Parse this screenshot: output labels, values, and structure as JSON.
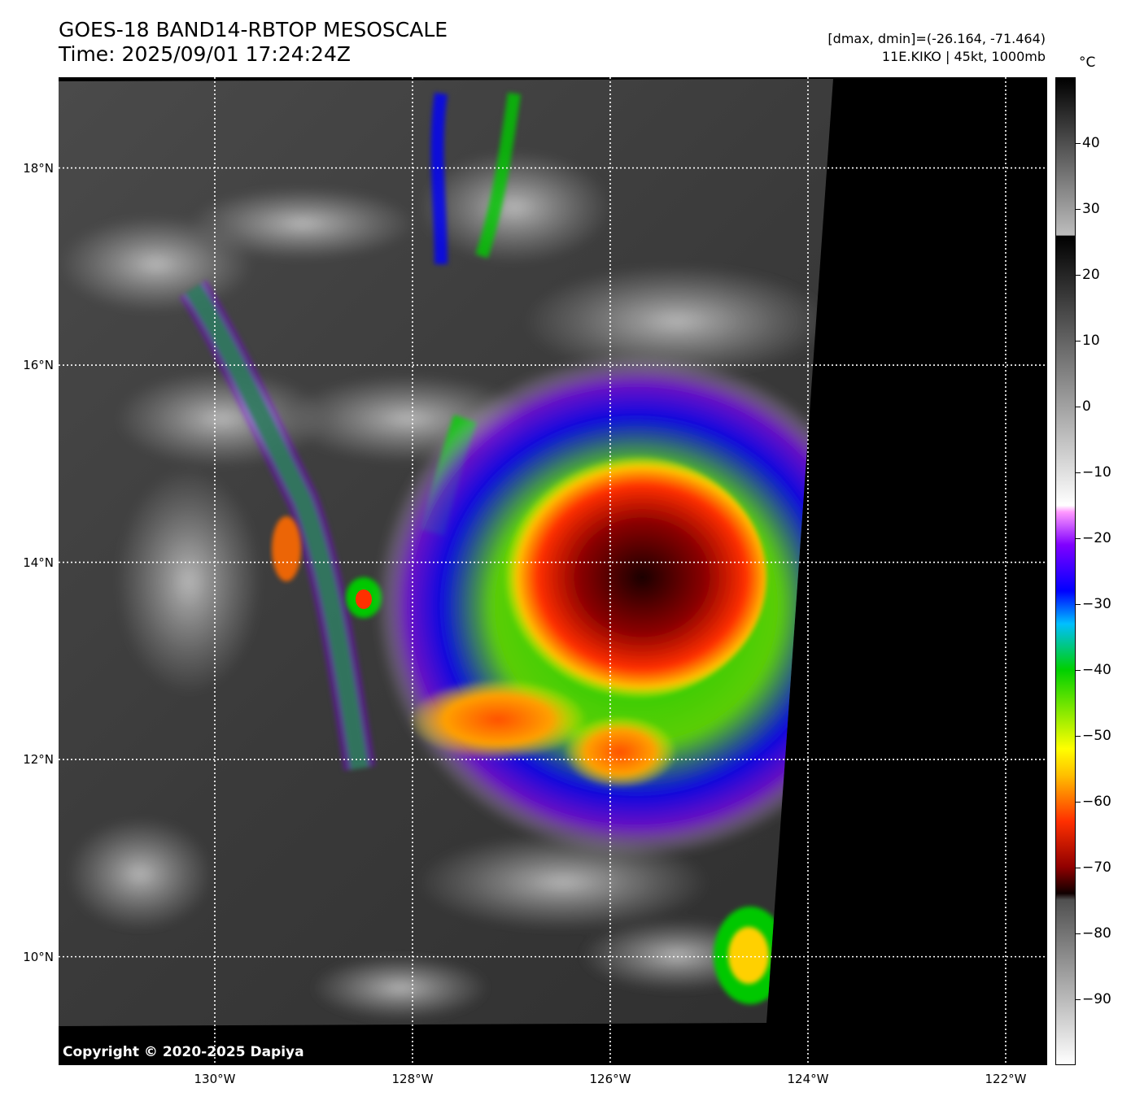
{
  "header": {
    "title_line1": "GOES-18 BAND14-RBTOP MESOSCALE",
    "title_line2": "Time: 2025/09/01 17:24:24Z",
    "stats_line": "[dmax, dmin]=(-26.164, -71.464)",
    "storm_line": "11E.KIKO | 45kt, 1000mb"
  },
  "map": {
    "copyright": "Copyright © 2020-2025 Dapiya",
    "lat_labels": [
      "18°N",
      "16°N",
      "14°N",
      "12°N",
      "10°N"
    ],
    "lon_labels": [
      "130°W",
      "128°W",
      "126°W",
      "124°W",
      "122°W"
    ],
    "lat_values": [
      18,
      16,
      14,
      12,
      10
    ],
    "lon_values": [
      -130,
      -128,
      -126,
      -124,
      -122
    ],
    "lat_range": [
      8.9,
      18.92
    ],
    "lon_range": [
      -131.58,
      -121.58
    ],
    "gridline_style": "white dotted",
    "storm_center": {
      "lat": 13.9,
      "lon": -125.6
    }
  },
  "colorbar": {
    "unit": "°C",
    "labels": [
      "40",
      "30",
      "20",
      "10",
      "0",
      "−10",
      "−20",
      "−30",
      "−40",
      "−50",
      "−60",
      "−70",
      "−80",
      "−90"
    ],
    "values": [
      40,
      30,
      20,
      10,
      0,
      -10,
      -20,
      -30,
      -40,
      -50,
      -60,
      -70,
      -80,
      -90
    ],
    "range": [
      -100,
      50
    ],
    "stops": [
      {
        "t": 50,
        "color": "#000000"
      },
      {
        "t": 26.1,
        "color": "#bdbdbd"
      },
      {
        "t": 26,
        "color": "#000000"
      },
      {
        "t": -15,
        "color": "#ffffff"
      },
      {
        "t": -16,
        "color": "#ff99ff"
      },
      {
        "t": -21,
        "color": "#8000ff"
      },
      {
        "t": -28,
        "color": "#0000ff"
      },
      {
        "t": -33,
        "color": "#00bfff"
      },
      {
        "t": -40,
        "color": "#00d000"
      },
      {
        "t": -52,
        "color": "#ffff00"
      },
      {
        "t": -56,
        "color": "#ffc000"
      },
      {
        "t": -63,
        "color": "#ff3000"
      },
      {
        "t": -70,
        "color": "#900000"
      },
      {
        "t": -74,
        "color": "#100000"
      },
      {
        "t": -75,
        "color": "#505050"
      },
      {
        "t": -100,
        "color": "#ffffff"
      }
    ]
  }
}
